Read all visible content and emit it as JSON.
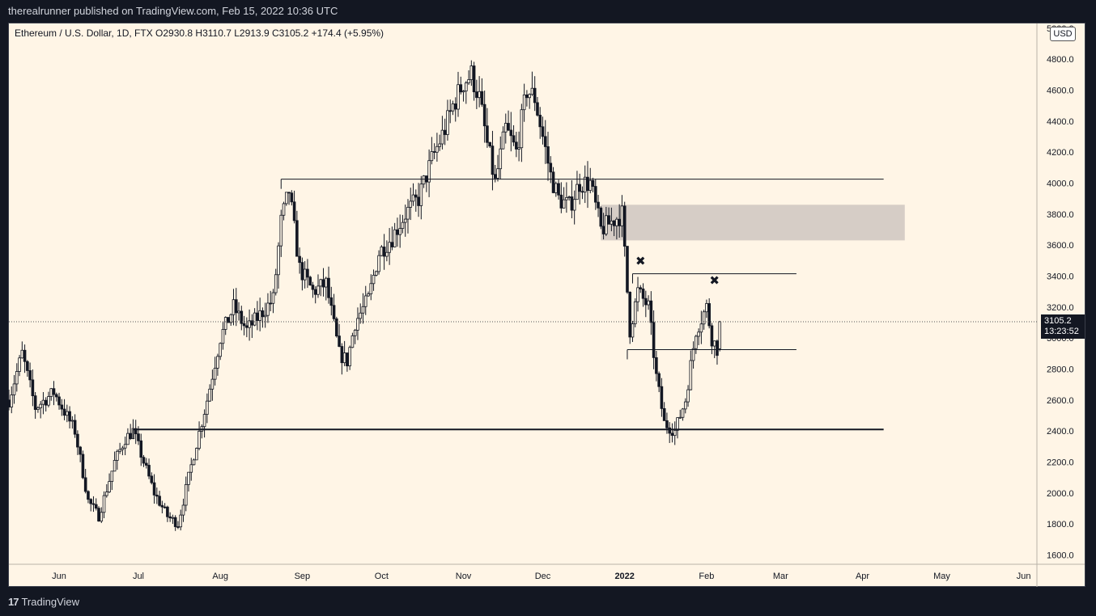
{
  "header": {
    "publisher": "therealrunner published on TradingView.com, Feb 15, 2022 10:36 UTC"
  },
  "legend": {
    "text": "Ethereum / U.S. Dollar, 1D, FTX  O2930.8  H3110.7  L2913.9  C3105.2  +174.4 (+5.95%)"
  },
  "footer": {
    "brand": "TradingView"
  },
  "colors": {
    "background": "#fff5e6",
    "candle": "#131722",
    "zone": "#d6cdc6",
    "frame": "#131722"
  },
  "chart_data": {
    "type": "candlestick",
    "currency": "USD",
    "ylim": [
      1540,
      5030
    ],
    "y_ticks": [
      5000,
      4800,
      4600,
      4400,
      4200,
      4000,
      3800,
      3600,
      3400,
      3200,
      3000,
      2800,
      2600,
      2400,
      2200,
      2000,
      1800,
      1600
    ],
    "y_tick_labels": [
      "5000.0",
      "4800.0",
      "4600.0",
      "4400.0",
      "4200.0",
      "4000.0",
      "3800.0",
      "3600.0",
      "3400.0",
      "3200.0",
      "3000.0",
      "2800.0",
      "2600.0",
      "2400.0",
      "2200.0",
      "2000.0",
      "1800.0",
      "1600.0"
    ],
    "x_month_labels": [
      "Jun",
      "Jul",
      "Aug",
      "Sep",
      "Oct",
      "Nov",
      "Dec",
      "2022",
      "Feb",
      "Mar",
      "Apr",
      "May",
      "Jun"
    ],
    "x_month_days": [
      19,
      49,
      80,
      111,
      141,
      172,
      202,
      233,
      264,
      292,
      323,
      353,
      384
    ],
    "x_range_days": [
      0,
      389
    ],
    "last_price": {
      "value": 3105.2,
      "label": "3105.2",
      "countdown": "13:23:52"
    },
    "horizontal_lines": [
      {
        "start_day": 103,
        "end_day": 331,
        "price": 4025,
        "weight": 1
      },
      {
        "start_day": 236,
        "end_day": 298,
        "price": 3415,
        "weight": 1
      },
      {
        "start_day": 234,
        "end_day": 298,
        "price": 2925,
        "weight": 1
      },
      {
        "start_day": 47,
        "end_day": 331,
        "price": 2410,
        "weight": 2
      }
    ],
    "zones": [
      {
        "start_day": 224,
        "end_day": 339,
        "top": 3860,
        "bottom": 3630
      }
    ],
    "markers": [
      {
        "day": 239,
        "price": 3470,
        "symbol": "✖"
      },
      {
        "day": 267,
        "price": 3345,
        "symbol": "✖"
      }
    ],
    "anchors": [
      [
        0,
        2600
      ],
      [
        5,
        2900
      ],
      [
        10,
        2550
      ],
      [
        17,
        2650
      ],
      [
        25,
        2400
      ],
      [
        30,
        1950
      ],
      [
        34,
        1850
      ],
      [
        40,
        2200
      ],
      [
        44,
        2350
      ],
      [
        47,
        2400
      ],
      [
        50,
        2250
      ],
      [
        55,
        2000
      ],
      [
        60,
        1850
      ],
      [
        64,
        1800
      ],
      [
        70,
        2250
      ],
      [
        75,
        2600
      ],
      [
        80,
        3000
      ],
      [
        85,
        3200
      ],
      [
        90,
        3050
      ],
      [
        95,
        3150
      ],
      [
        100,
        3250
      ],
      [
        103,
        3750
      ],
      [
        106,
        3950
      ],
      [
        110,
        3450
      ],
      [
        115,
        3300
      ],
      [
        120,
        3350
      ],
      [
        125,
        2900
      ],
      [
        128,
        2850
      ],
      [
        131,
        3100
      ],
      [
        136,
        3250
      ],
      [
        140,
        3550
      ],
      [
        145,
        3650
      ],
      [
        150,
        3800
      ],
      [
        155,
        3900
      ],
      [
        160,
        4150
      ],
      [
        165,
        4350
      ],
      [
        168,
        4500
      ],
      [
        172,
        4650
      ],
      [
        175,
        4700
      ],
      [
        178,
        4550
      ],
      [
        181,
        4250
      ],
      [
        184,
        4000
      ],
      [
        188,
        4350
      ],
      [
        192,
        4200
      ],
      [
        196,
        4600
      ],
      [
        199,
        4550
      ],
      [
        202,
        4300
      ],
      [
        205,
        4050
      ],
      [
        208,
        3900
      ],
      [
        212,
        3850
      ],
      [
        216,
        4000
      ],
      [
        220,
        4000
      ],
      [
        224,
        3700
      ],
      [
        228,
        3750
      ],
      [
        232,
        3800
      ],
      [
        235,
        3050
      ],
      [
        238,
        3300
      ],
      [
        242,
        3200
      ],
      [
        245,
        2750
      ],
      [
        248,
        2450
      ],
      [
        252,
        2400
      ],
      [
        256,
        2600
      ],
      [
        260,
        3050
      ],
      [
        264,
        3200
      ],
      [
        266,
        3000
      ],
      [
        268,
        2930
      ],
      [
        269,
        3105
      ]
    ],
    "last_candle": {
      "day": 269,
      "open": 2930.8,
      "high": 3110.7,
      "low": 2913.9,
      "close": 3105.2
    }
  }
}
